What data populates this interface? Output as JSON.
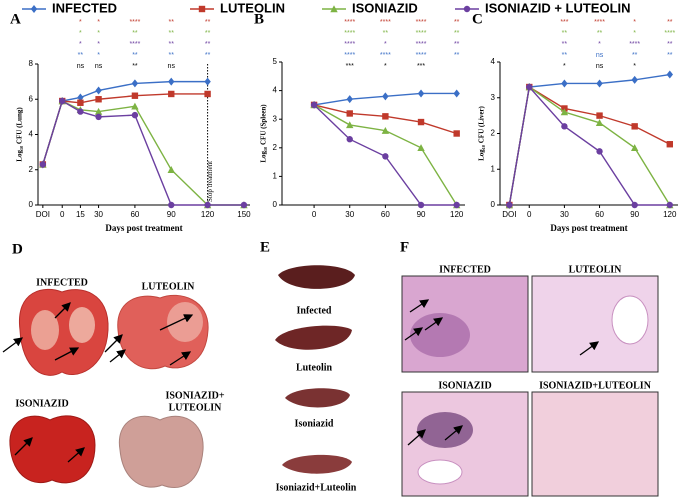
{
  "chart_data": [
    {
      "type": "line",
      "panel": "A",
      "ylabel": "Log₁₀ CFU (Lung)",
      "xlabel": "Days post treatment",
      "x": [
        -16,
        0,
        15,
        30,
        60,
        90,
        120,
        150
      ],
      "xlim": [
        -20,
        155
      ],
      "xticks": [
        {
          "value": -16,
          "label": "DOI"
        },
        0,
        15,
        30,
        60,
        90,
        120,
        150
      ],
      "ylim": [
        0,
        8
      ],
      "yticks": [
        0,
        2,
        4,
        6,
        8
      ],
      "series": [
        {
          "name": "INFECTED",
          "color": "#3b6fc6",
          "marker": "diamond",
          "values": [
            2.3,
            5.9,
            6.1,
            6.5,
            6.9,
            7.0,
            7.0,
            null
          ]
        },
        {
          "name": "LUTEOLIN",
          "color": "#c0392b",
          "marker": "square",
          "values": [
            2.3,
            5.9,
            5.8,
            6.0,
            6.2,
            6.3,
            6.3,
            null
          ]
        },
        {
          "name": "ISONIAZID",
          "color": "#7db343",
          "marker": "triangle",
          "values": [
            2.3,
            5.9,
            5.4,
            5.3,
            5.6,
            2.0,
            0,
            0
          ]
        },
        {
          "name": "ISONIAZID + LUTEOLIN",
          "color": "#6b3fa0",
          "marker": "circle",
          "values": [
            2.3,
            5.9,
            5.3,
            5.0,
            5.1,
            0,
            0,
            0
          ]
        }
      ],
      "annotations": [
        {
          "text": "Stop treatment",
          "x": 120
        }
      ],
      "significance": {
        "x": [
          15,
          30,
          60,
          90,
          120
        ],
        "rows": [
          {
            "color": "#c0392b",
            "labels": [
              "*",
              "*",
              "****",
              "**",
              "**"
            ]
          },
          {
            "color": "#7db343",
            "labels": [
              "*",
              "*",
              "**",
              "**",
              "**"
            ]
          },
          {
            "color": "#6b3fa0",
            "labels": [
              "*",
              "*",
              "****",
              "**",
              "**"
            ]
          },
          {
            "color": "#3b6fc6",
            "labels": [
              "**",
              "*",
              "**",
              "**",
              "**"
            ]
          },
          {
            "color": "#000000",
            "labels": [
              "ns",
              "ns",
              "**",
              "ns",
              null
            ]
          }
        ]
      }
    },
    {
      "type": "line",
      "panel": "B",
      "ylabel": "Log₁₀ CFU (Spleen)",
      "x": [
        0,
        30,
        60,
        90,
        120
      ],
      "xlim": [
        -27,
        127
      ],
      "xticks": [
        0,
        30,
        60,
        90,
        120
      ],
      "ylim": [
        0,
        5
      ],
      "yticks": [
        0,
        1,
        2,
        3,
        4,
        5
      ],
      "series": [
        {
          "name": "INFECTED",
          "color": "#3b6fc6",
          "marker": "diamond",
          "values": [
            3.5,
            3.7,
            3.8,
            3.9,
            3.9
          ]
        },
        {
          "name": "LUTEOLIN",
          "color": "#c0392b",
          "marker": "square",
          "values": [
            3.5,
            3.2,
            3.1,
            2.9,
            2.5
          ]
        },
        {
          "name": "ISONIAZID",
          "color": "#7db343",
          "marker": "triangle",
          "values": [
            3.5,
            2.8,
            2.6,
            2.0,
            0
          ]
        },
        {
          "name": "ISONIAZID + LUTEOLIN",
          "color": "#6b3fa0",
          "marker": "circle",
          "values": [
            3.5,
            2.3,
            1.7,
            0,
            0
          ]
        }
      ],
      "significance": {
        "x": [
          30,
          60,
          90,
          120
        ],
        "rows": [
          {
            "color": "#c0392b",
            "labels": [
              "****",
              "****",
              "****",
              "**"
            ]
          },
          {
            "color": "#7db343",
            "labels": [
              "****",
              "**",
              "****",
              "**"
            ]
          },
          {
            "color": "#6b3fa0",
            "labels": [
              "****",
              "*",
              "****",
              "**"
            ]
          },
          {
            "color": "#3b6fc6",
            "labels": [
              "****",
              "****",
              "****",
              "**"
            ]
          },
          {
            "color": "#000000",
            "labels": [
              "***",
              "*",
              "***",
              null
            ]
          }
        ]
      }
    },
    {
      "type": "line",
      "panel": "C",
      "ylabel": "Log₁₀ CFU (Liver)",
      "xlabel": "Days post treatment",
      "x": [
        -17,
        0,
        30,
        60,
        90,
        120
      ],
      "xlim": [
        -25,
        127
      ],
      "xticks": [
        {
          "value": -17,
          "label": "DOI"
        },
        0,
        30,
        60,
        90,
        120
      ],
      "ylim": [
        0,
        4
      ],
      "yticks": [
        0,
        1,
        2,
        3,
        4
      ],
      "series": [
        {
          "name": "INFECTED",
          "color": "#3b6fc6",
          "marker": "diamond",
          "values": [
            0,
            3.3,
            3.4,
            3.4,
            3.5,
            3.65
          ]
        },
        {
          "name": "LUTEOLIN",
          "color": "#c0392b",
          "marker": "square",
          "values": [
            0,
            3.3,
            2.7,
            2.5,
            2.2,
            1.7
          ]
        },
        {
          "name": "ISONIAZID",
          "color": "#7db343",
          "marker": "triangle",
          "values": [
            0,
            3.3,
            2.6,
            2.3,
            1.6,
            0
          ]
        },
        {
          "name": "ISONIAZID + LUTEOLIN",
          "color": "#6b3fa0",
          "marker": "circle",
          "values": [
            0,
            3.3,
            2.2,
            1.5,
            0,
            0
          ]
        }
      ],
      "significance": {
        "x": [
          30,
          60,
          90,
          120
        ],
        "rows": [
          {
            "color": "#c0392b",
            "labels": [
              "***",
              "****",
              "*",
              "**"
            ]
          },
          {
            "color": "#7db343",
            "labels": [
              "**",
              "**",
              "*",
              "****"
            ]
          },
          {
            "color": "#6b3fa0",
            "labels": [
              "**",
              "*",
              "****",
              "**"
            ]
          },
          {
            "color": "#3b6fc6",
            "labels": [
              "**",
              "ns",
              "**",
              "**"
            ]
          },
          {
            "color": "#000000",
            "labels": [
              "*",
              "ns",
              "*",
              null
            ]
          }
        ]
      }
    }
  ],
  "panels": {
    "D": {
      "label": "D",
      "captions": [
        [
          "INFECTED"
        ],
        [
          "LUTEOLIN"
        ],
        [
          "ISONIAZID"
        ],
        [
          "ISONIAZID+",
          "LUTEOLIN"
        ]
      ]
    },
    "E": {
      "label": "E",
      "captions": [
        "Infected",
        "Luteolin",
        "Isoniazid",
        "Isoniazid+Luteolin"
      ]
    },
    "F": {
      "label": "F",
      "captions": [
        "INFECTED",
        "LUTEOLIN",
        "ISONIAZID",
        "ISONIAZID+LUTEOLIN"
      ]
    }
  }
}
